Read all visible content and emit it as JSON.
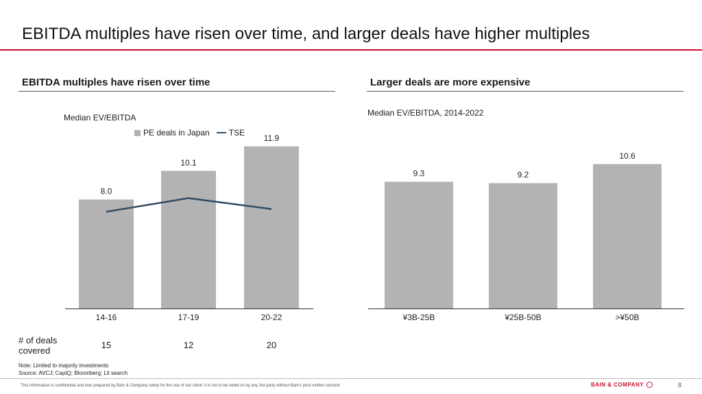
{
  "page": {
    "title": "EBITDA multiples have risen over time, and larger deals have higher multiples",
    "page_number": "8",
    "brand": "BAIN & COMPANY",
    "footer": "This information is confidential and was prepared by Bain & Company solely for the use of our client; it is not to be relied on by any 3rd party without Bain's prior written consent",
    "note": "Note: Limited to majority investments",
    "source": "Source: AVCJ; CapIQ;  Bloomberg; Lit search"
  },
  "left": {
    "section_title": "EBITDA multiples  have risen over time",
    "subtitle": "Median EV/EBITDA",
    "legend": {
      "bar": "PE deals in Japan",
      "line": "TSE"
    },
    "deals_label": "# of deals covered",
    "deals": [
      "15",
      "12",
      "20"
    ]
  },
  "right": {
    "section_title": "Larger deals are more expensive",
    "subtitle": "Median EV/EBITDA, 2014-2022"
  },
  "colors": {
    "bar": "#b3b3b3",
    "line": "#2e4a62",
    "accent": "#c8102e"
  },
  "chart_data": [
    {
      "type": "bar",
      "title": "EBITDA multiples  have risen over time",
      "ylabel": "Median EV/EBITDA",
      "categories": [
        "14-16",
        "17-19",
        "20-22"
      ],
      "series": [
        {
          "name": "PE deals in Japan",
          "type": "bar",
          "values": [
            8.0,
            10.1,
            11.9
          ],
          "labels": [
            "8.0",
            "10.1",
            "11.9"
          ]
        },
        {
          "name": "TSE",
          "type": "line",
          "values": [
            7.1,
            8.1,
            7.3
          ]
        }
      ],
      "ylim": [
        0,
        12.6
      ],
      "grid": false,
      "legend": "top"
    },
    {
      "type": "bar",
      "title": "Larger deals are more expensive",
      "ylabel": "Median EV/EBITDA, 2014-2022",
      "categories": [
        "¥3B-25B",
        "¥25B-50B",
        ">¥50B"
      ],
      "series": [
        {
          "values": [
            9.3,
            9.2,
            10.6
          ],
          "labels": [
            "9.3",
            "9.2",
            "10.6"
          ]
        }
      ],
      "ylim": [
        0,
        12.6
      ],
      "grid": false
    }
  ]
}
